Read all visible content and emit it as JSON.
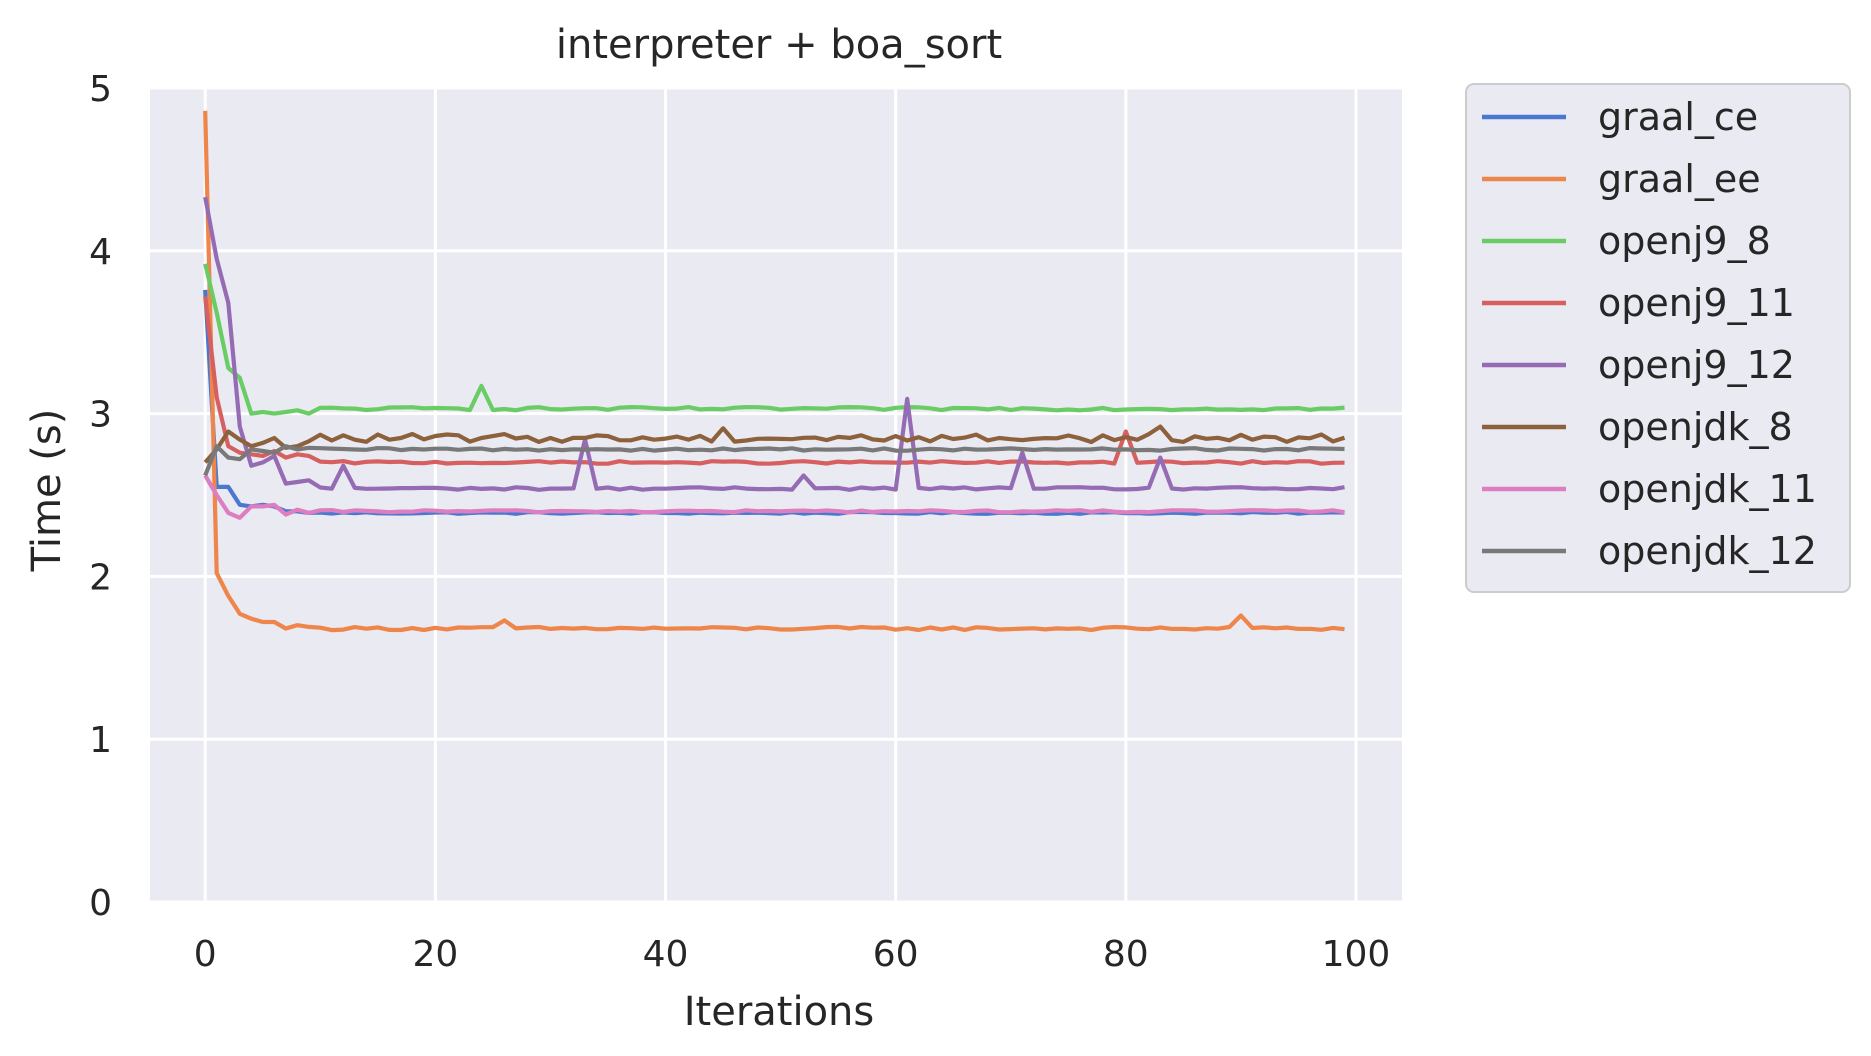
{
  "chart_data": {
    "type": "line",
    "title": "interpreter + boa_sort",
    "xlabel": "Iterations",
    "ylabel": "Time (s)",
    "xlim": [
      -4.8,
      104
    ],
    "ylim": [
      0,
      5
    ],
    "xticks": [
      0,
      20,
      40,
      60,
      80,
      100
    ],
    "yticks": [
      0,
      1,
      2,
      3,
      4,
      5
    ],
    "grid": true,
    "legend_position": "outside-right",
    "series": [
      {
        "name": "graal_ce",
        "color": "#4878d0",
        "start": 3.76,
        "early": [
          2.55,
          2.55,
          2.44,
          2.43,
          2.44,
          2.43,
          2.4,
          2.4,
          2.39
        ],
        "base": 2.39,
        "noise": 0.006,
        "spikes": {}
      },
      {
        "name": "graal_ee",
        "color": "#ee854a",
        "start": 4.86,
        "early": [
          2.02,
          1.88,
          1.77,
          1.74,
          1.72,
          1.72,
          1.68,
          1.7,
          1.69
        ],
        "base": 1.68,
        "noise": 0.01,
        "spikes": {
          "26": 1.73,
          "90": 1.76
        }
      },
      {
        "name": "openj9_8",
        "color": "#6acc64",
        "start": 3.92,
        "early": [
          3.62,
          3.28,
          3.22,
          3.0,
          3.01,
          3.0,
          3.01,
          3.02,
          3.0
        ],
        "base": 3.03,
        "noise": 0.01,
        "spikes": {
          "24": 3.17
        }
      },
      {
        "name": "openj9_11",
        "color": "#d65f5f",
        "start": 3.72,
        "early": [
          3.1,
          2.8,
          2.76,
          2.75,
          2.74,
          2.77,
          2.73,
          2.75,
          2.74
        ],
        "base": 2.7,
        "noise": 0.008,
        "spikes": {
          "80": 2.89
        }
      },
      {
        "name": "openj9_12",
        "color": "#956cb4",
        "start": 4.33,
        "early": [
          3.95,
          3.68,
          2.92,
          2.68,
          2.7,
          2.74,
          2.57,
          2.58,
          2.59
        ],
        "base": 2.54,
        "noise": 0.008,
        "spikes": {
          "12": 2.68,
          "33": 2.84,
          "52": 2.62,
          "61": 3.09,
          "71": 2.76,
          "83": 2.73
        }
      },
      {
        "name": "openjdk_8",
        "color": "#8c613c",
        "start": 2.7,
        "early": [
          2.78,
          2.89,
          2.84,
          2.8,
          2.82,
          2.85,
          2.79,
          2.8,
          2.83
        ],
        "base": 2.85,
        "noise": 0.025,
        "spikes": {
          "45": 2.91,
          "83": 2.92
        }
      },
      {
        "name": "openjdk_11",
        "color": "#dc7ec0",
        "start": 2.62,
        "early": [
          2.5,
          2.39,
          2.36,
          2.43,
          2.43,
          2.44,
          2.38,
          2.41,
          2.39
        ],
        "base": 2.4,
        "noise": 0.007,
        "spikes": {}
      },
      {
        "name": "openjdk_12",
        "color": "#797979",
        "start": 2.62,
        "early": [
          2.8,
          2.73,
          2.72,
          2.78,
          2.77,
          2.76,
          2.8,
          2.78,
          2.79
        ],
        "base": 2.78,
        "noise": 0.008,
        "spikes": {}
      }
    ]
  }
}
